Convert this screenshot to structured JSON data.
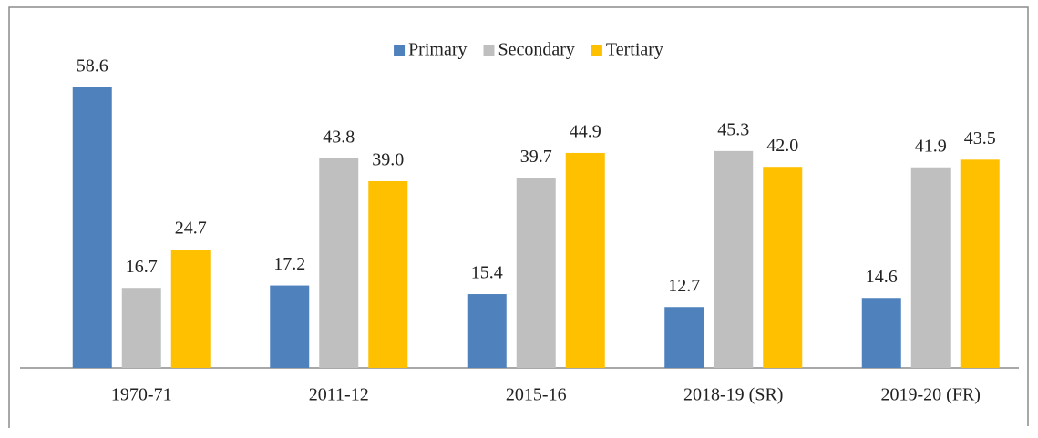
{
  "chart_data": {
    "type": "bar",
    "categories": [
      "1970-71",
      "2011-12",
      "2015-16",
      "2018-19 (SR)",
      "2019-20 (FR)"
    ],
    "series": [
      {
        "name": "Primary",
        "color": "#4f81bd",
        "values": [
          58.6,
          17.2,
          15.4,
          12.7,
          14.6
        ],
        "value_labels": [
          "58.6",
          "17.2",
          "15.4",
          "12.7",
          "14.6"
        ]
      },
      {
        "name": "Secondary",
        "color": "#bfbfbf",
        "values": [
          16.7,
          43.8,
          39.7,
          45.3,
          41.9
        ],
        "value_labels": [
          "16.7",
          "43.8",
          "39.7",
          "45.3",
          "41.9"
        ]
      },
      {
        "name": "Tertiary",
        "color": "#ffc000",
        "values": [
          24.7,
          39.0,
          44.9,
          42.0,
          43.5
        ],
        "value_labels": [
          "24.7",
          "39.0",
          "44.9",
          "42.0",
          "43.5"
        ]
      }
    ],
    "ylim": [
      0,
      70
    ],
    "legend": "top"
  }
}
